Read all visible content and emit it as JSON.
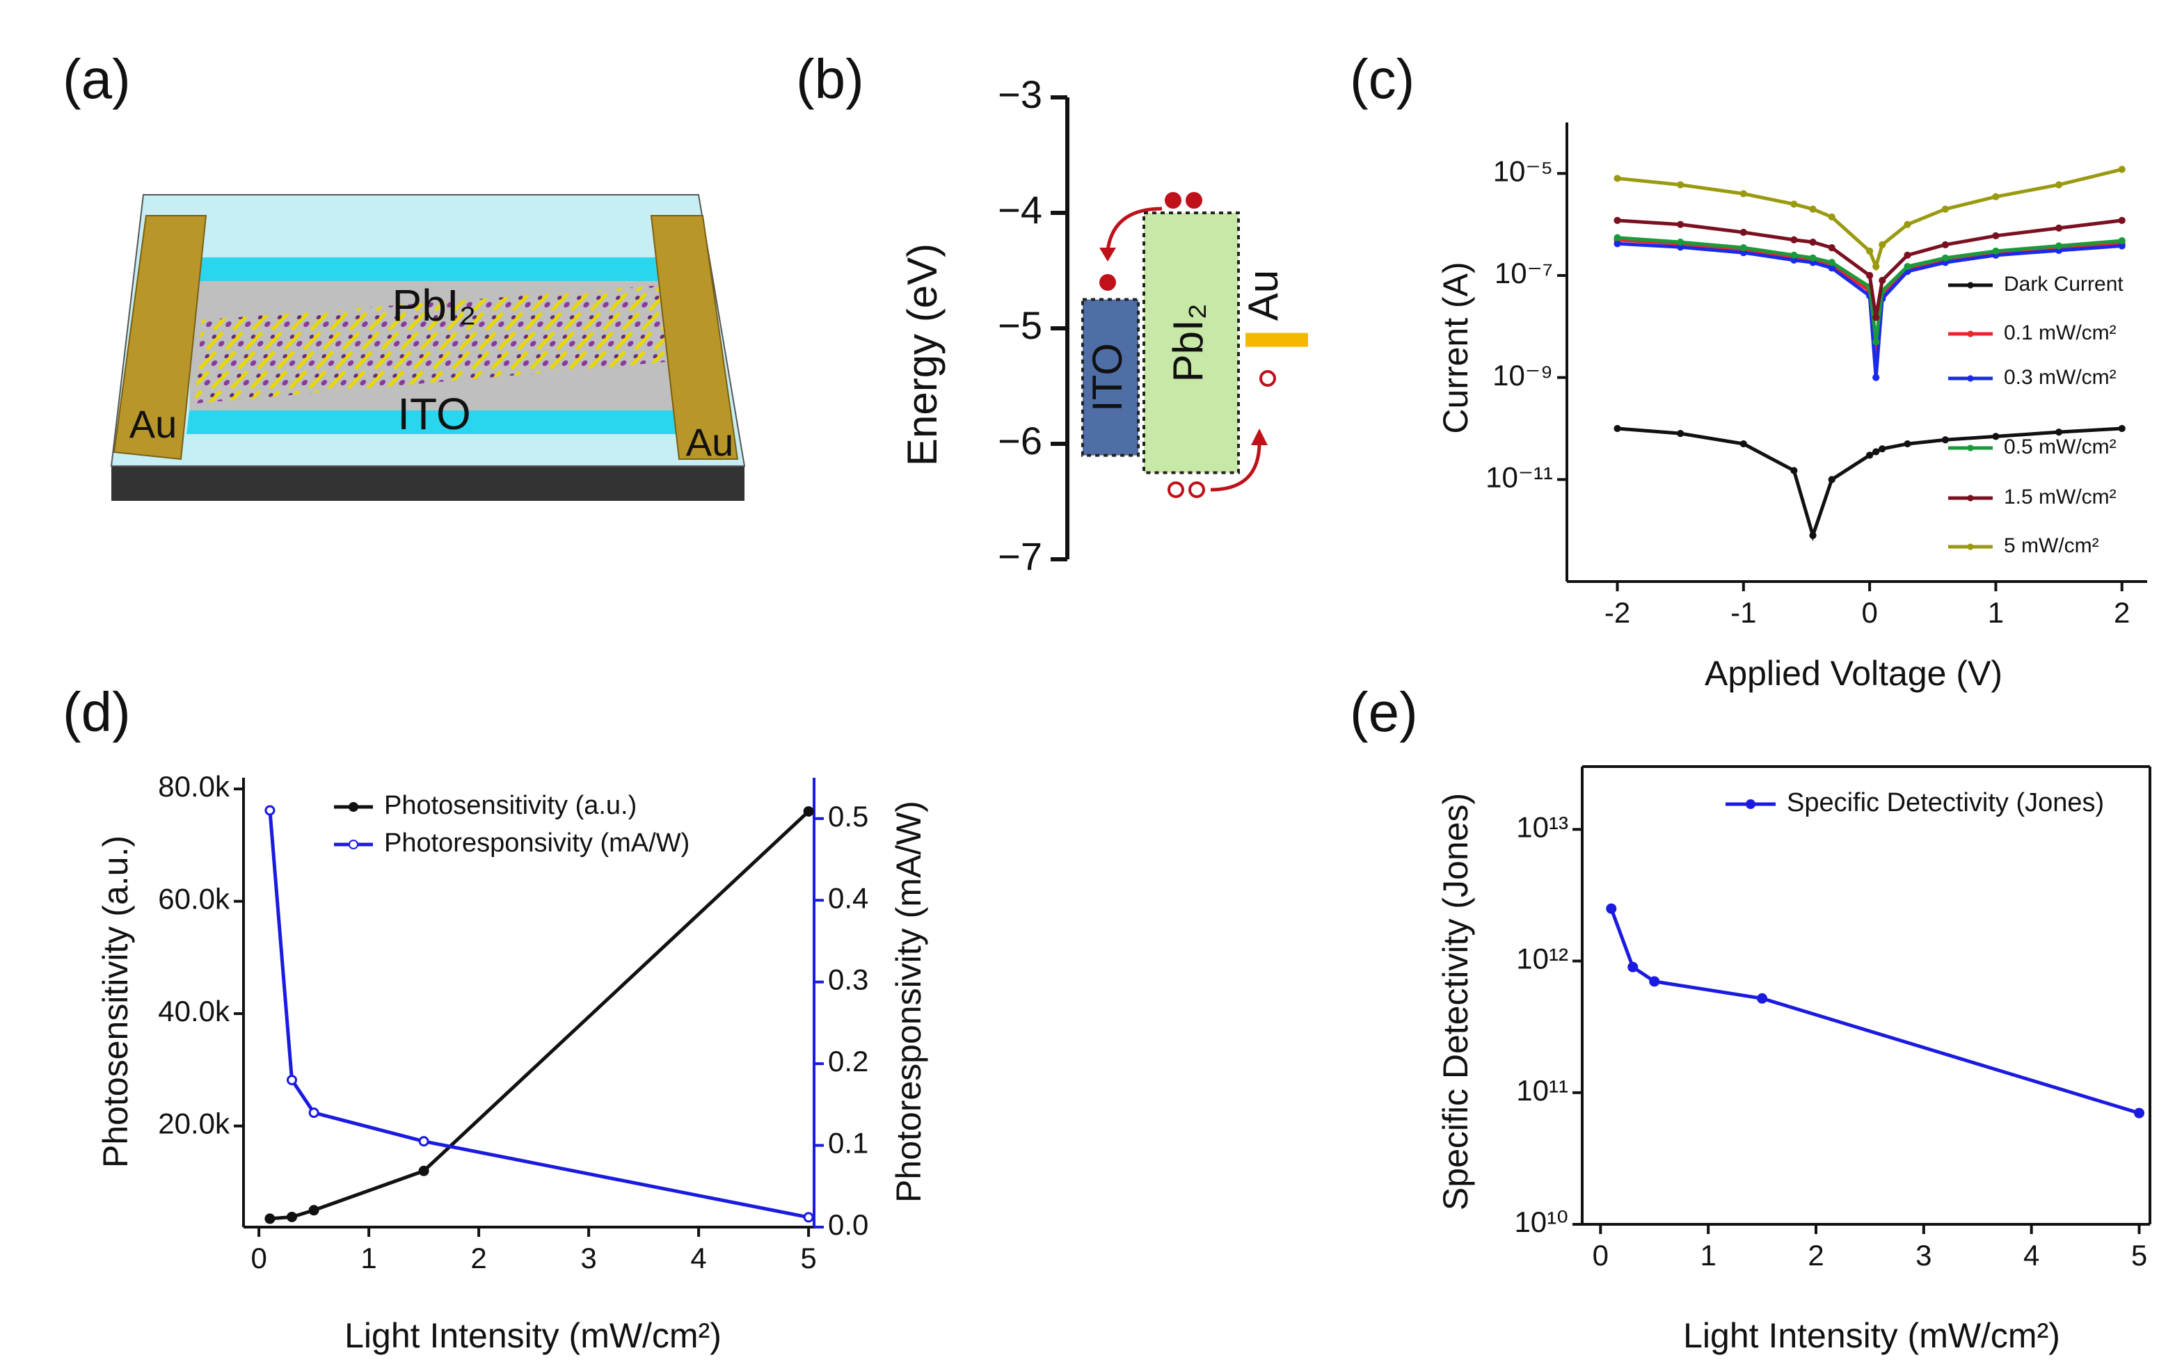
{
  "panel_labels": [
    "(a)",
    "(b)",
    "(c)",
    "(d)",
    "(e)"
  ],
  "device": {
    "labels": {
      "film": "PbI₂",
      "substrate": "ITO",
      "left_electrode": "Au",
      "right_electrode": "Au"
    }
  },
  "band_diagram": {
    "ylabel": "Energy (eV)",
    "ylim": [
      -7,
      -3
    ],
    "yticks": [
      {
        "value": -3,
        "label": "−3"
      },
      {
        "value": -4,
        "label": "−4"
      },
      {
        "value": -5,
        "label": "−5"
      },
      {
        "value": -6,
        "label": "−6"
      },
      {
        "value": -7,
        "label": "−7"
      }
    ],
    "levels": [
      {
        "name": "ITO",
        "top": -4.75,
        "bottom": -6.1,
        "color": "#4f6ea6"
      },
      {
        "name": "PbI₂",
        "top": -4.0,
        "bottom": -6.25,
        "color": "#c8e8a8"
      },
      {
        "name": "Au",
        "level": -5.1,
        "color": "#f5b800"
      }
    ]
  },
  "chart_data": [
    {
      "type": "line",
      "xlabel": "Applied Voltage (V)",
      "ylabel": "Current (A)",
      "log_y": true,
      "x": [
        -2,
        -1.5,
        -1,
        -0.6,
        -0.45,
        -0.3,
        0,
        0.05,
        0.1,
        0.3,
        0.6,
        1,
        1.5,
        2
      ],
      "xlim": [
        -2.4,
        2.2
      ],
      "xticks": [
        -2,
        -1,
        0,
        1,
        2
      ],
      "ylim": [
        1e-13,
        0.0001
      ],
      "yticks": [
        {
          "value": 1e-11,
          "label": "10⁻¹¹"
        },
        {
          "value": 1e-09,
          "label": "10⁻⁹"
        },
        {
          "value": 1e-07,
          "label": "10⁻⁷"
        },
        {
          "value": 1e-05,
          "label": "10⁻⁵"
        }
      ],
      "legend": "right",
      "series": [
        {
          "name": "Dark Current",
          "color": "#111111",
          "values": [
            1e-10,
            8e-11,
            5e-11,
            1.5e-11,
            8e-13,
            1e-11,
            3e-11,
            3.5e-11,
            4e-11,
            5e-11,
            6e-11,
            7e-11,
            8.5e-11,
            1e-10
          ]
        },
        {
          "name": "0.1 mW/cm²",
          "color": "#e8262b",
          "values": [
            5e-07,
            4.2e-07,
            3.2e-07,
            2.3e-07,
            2e-07,
            1.6e-07,
            5e-08,
            3e-09,
            4e-08,
            1.3e-07,
            2e-07,
            2.7e-07,
            3.4e-07,
            4.2e-07
          ]
        },
        {
          "name": "0.3 mW/cm²",
          "color": "#1a2ae8",
          "values": [
            4.2e-07,
            3.6e-07,
            2.8e-07,
            2e-07,
            1.8e-07,
            1.4e-07,
            4e-08,
            1e-09,
            3.5e-08,
            1.2e-07,
            1.8e-07,
            2.5e-07,
            3.1e-07,
            3.8e-07
          ]
        },
        {
          "name": "0.5  mW/cm²",
          "color": "#1a9a3a",
          "values": [
            5.5e-07,
            4.5e-07,
            3.5e-07,
            2.5e-07,
            2.2e-07,
            1.8e-07,
            6e-08,
            5e-09,
            5e-08,
            1.5e-07,
            2.2e-07,
            3e-07,
            3.8e-07,
            4.8e-07
          ]
        },
        {
          "name": "1.5 mW/cm²",
          "color": "#7a1020",
          "values": [
            1.2e-06,
            1e-06,
            7e-07,
            5e-07,
            4.5e-07,
            3.5e-07,
            1e-07,
            1.5e-08,
            8e-08,
            2.5e-07,
            4e-07,
            6e-07,
            8.5e-07,
            1.2e-06
          ]
        },
        {
          "name": "5 mW/cm²",
          "color": "#9a9a10",
          "values": [
            8e-06,
            6e-06,
            4e-06,
            2.5e-06,
            2e-06,
            1.4e-06,
            3e-07,
            1.5e-07,
            4e-07,
            1e-06,
            2e-06,
            3.5e-06,
            6e-06,
            1.2e-05
          ]
        }
      ]
    },
    {
      "type": "line",
      "xlabel": "Light Intensity (mW/cm²)",
      "ylabel": "Photosensitivity (a.u.)",
      "y2label": "Photoresponsivity (mA/W)",
      "x": [
        0.1,
        0.3,
        0.5,
        1.5,
        5
      ],
      "xlim": [
        -0.14,
        5.05
      ],
      "xticks": [
        0,
        1,
        2,
        3,
        4,
        5
      ],
      "ylim": [
        2000,
        82000
      ],
      "yticks": [
        {
          "value": 20000,
          "label": "20.0k"
        },
        {
          "value": 40000,
          "label": "40.0k"
        },
        {
          "value": 60000,
          "label": "60.0k"
        },
        {
          "value": 80000,
          "label": "80.0k"
        }
      ],
      "y2lim": [
        0,
        0.55
      ],
      "y2color": "#1a1ae0",
      "y2ticks": [
        {
          "value": 0,
          "label": "0.0"
        },
        0.1,
        0.2,
        0.3,
        0.4,
        0.5
      ],
      "legend": "upper left",
      "series": [
        {
          "name": "Photosensitivity (a.u.)",
          "color": "#111111",
          "marker": "circle",
          "values": [
            3500,
            3800,
            5000,
            12000,
            76000
          ]
        },
        {
          "name": "Photoresponsivity (mA/W)",
          "color": "#1a1ae0",
          "marker": "circle-open",
          "axis": "y2",
          "values": [
            0.51,
            0.18,
            0.14,
            0.105,
            0.012
          ]
        }
      ]
    },
    {
      "type": "line",
      "xlabel": "Light Intensity (mW/cm²)",
      "ylabel": "Specific Detectivity (Jones)",
      "log_y": true,
      "x": [
        0.1,
        0.3,
        0.5,
        1.5,
        5
      ],
      "xlim": [
        -0.17,
        5.1
      ],
      "xticks": [
        0,
        1,
        2,
        3,
        4,
        5
      ],
      "ylim": [
        10000000000,
        30000000000000
      ],
      "yticks": [
        {
          "value": 10000000000,
          "label": "10¹⁰"
        },
        {
          "value": 100000000000,
          "label": "10¹¹"
        },
        {
          "value": 1000000000000,
          "label": "10¹²"
        },
        {
          "value": 10000000000000,
          "label": "10¹³"
        }
      ],
      "legend": "upper right",
      "series": [
        {
          "name": "Specific Detectivity (Jones)",
          "color": "#1a1ae0",
          "marker": "circle",
          "values": [
            2500000000000,
            900000000000,
            700000000000,
            520000000000,
            70000000000
          ]
        }
      ]
    }
  ]
}
